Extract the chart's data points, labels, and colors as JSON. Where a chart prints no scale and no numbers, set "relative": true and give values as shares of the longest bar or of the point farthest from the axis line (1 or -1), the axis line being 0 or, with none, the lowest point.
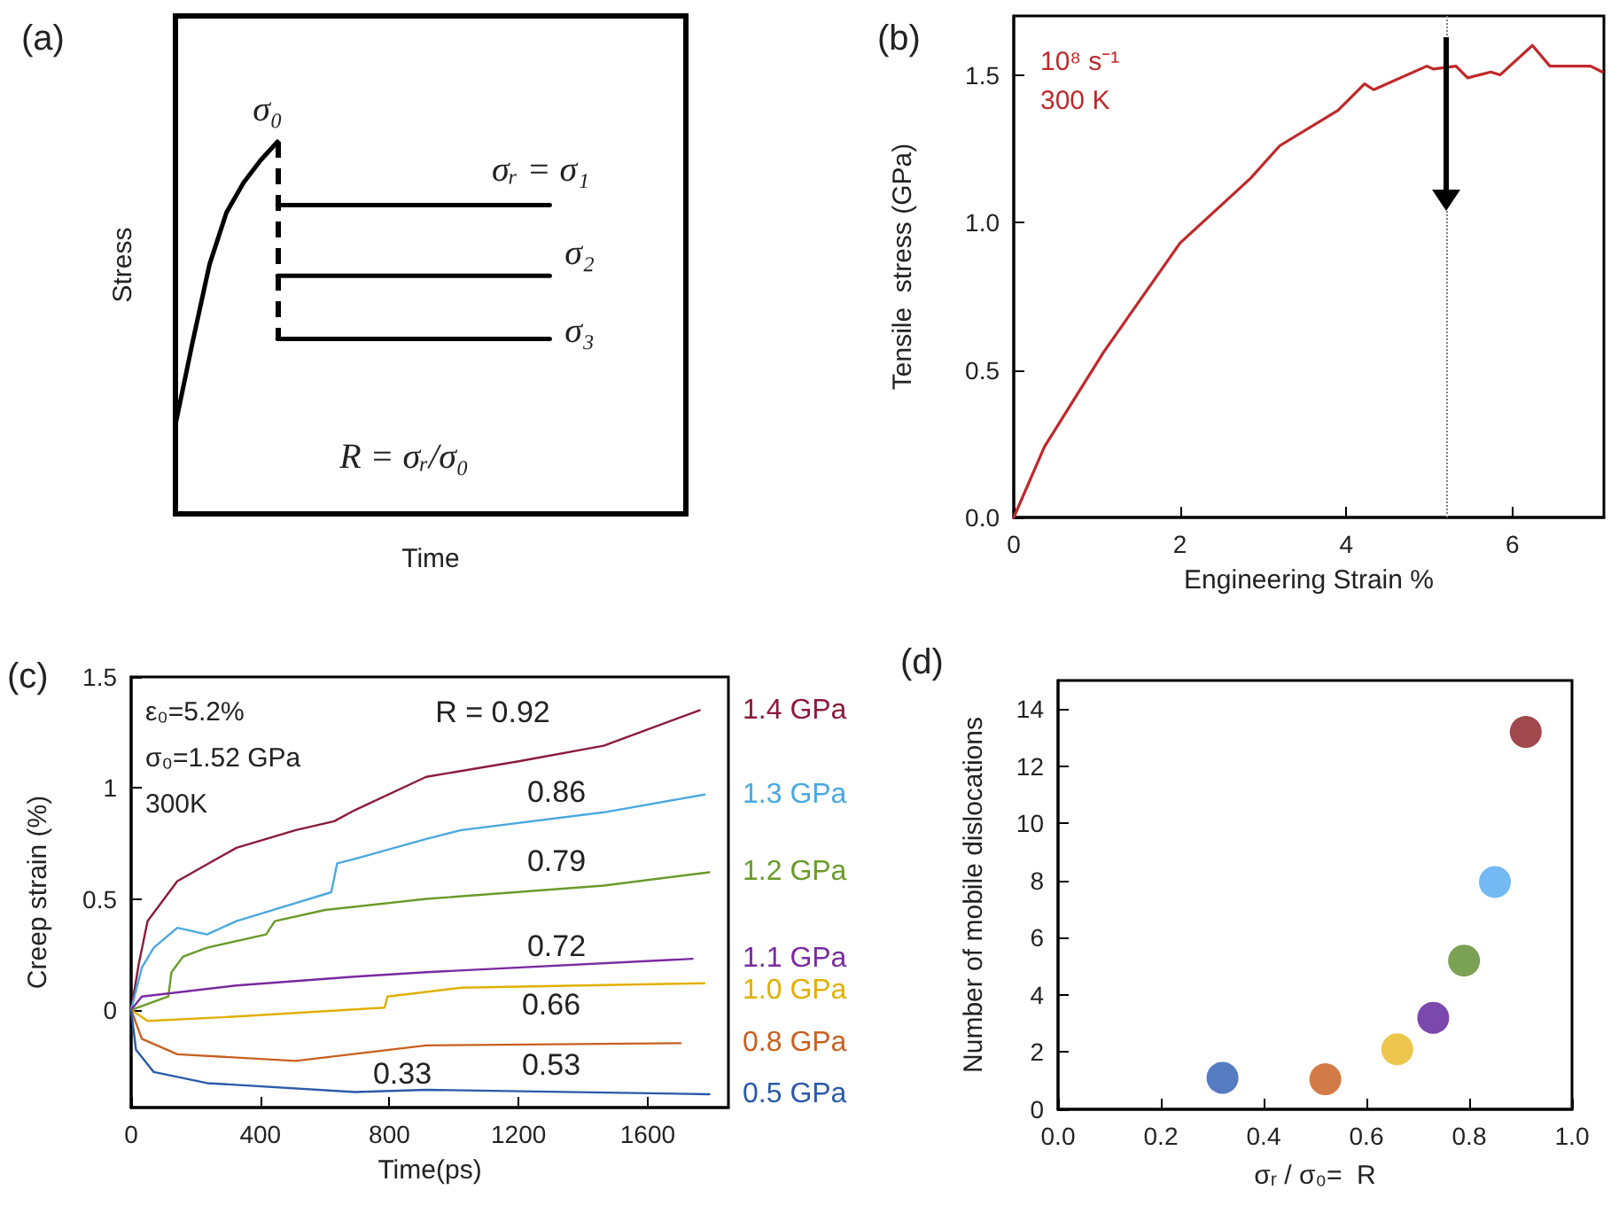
{
  "chart_data": [
    {
      "type": "line",
      "title": "(a)",
      "xlabel": "Time",
      "ylabel": "Stress",
      "relative": true,
      "marker": "none",
      "categories": [
        null,
        null,
        null,
        null,
        null,
        null,
        null,
        null,
        null,
        null,
        null,
        null,
        null,
        null,
        null,
        null,
        null,
        null,
        null,
        null,
        null,
        null,
        null,
        null,
        null,
        null,
        null,
        null,
        null,
        null,
        null
      ],
      "series": [
        {
          "color": "#000000",
          "values": [
            0.24,
            0.46,
            0.67,
            0.81,
            0.89,
            0.95,
            1,
            null,
            null,
            null,
            null,
            null,
            null,
            null,
            null,
            null,
            null,
            null,
            null,
            null,
            null,
            null,
            null,
            null,
            null,
            null,
            null,
            null,
            null,
            null,
            null
          ]
        },
        {
          "color": "#000000",
          "values": [
            null,
            null,
            null,
            null,
            null,
            null,
            0.83,
            0.83,
            0.83,
            0.83,
            0.83,
            0.83,
            0.83,
            0.83,
            0.83,
            0.83,
            0.83,
            0.83,
            0.83,
            0.83,
            0.83,
            0.83,
            0.83,
            null,
            null,
            null,
            null,
            null,
            null,
            null,
            null
          ]
        },
        {
          "color": "#000000",
          "values": [
            null,
            null,
            null,
            null,
            null,
            null,
            0.64,
            0.64,
            0.64,
            0.64,
            0.64,
            0.64,
            0.64,
            0.64,
            0.64,
            0.64,
            0.64,
            0.64,
            0.64,
            0.64,
            0.64,
            0.64,
            0.64,
            null,
            null,
            null,
            null,
            null,
            null,
            null,
            null
          ]
        },
        {
          "color": "#000000",
          "values": [
            null,
            null,
            null,
            null,
            null,
            null,
            0.47,
            0.47,
            0.47,
            0.47,
            0.47,
            0.47,
            0.47,
            0.47,
            0.47,
            0.47,
            0.47,
            0.47,
            0.47,
            0.47,
            0.47,
            0.47,
            0.47,
            null,
            null,
            null,
            null,
            null,
            null,
            null,
            null
          ]
        }
      ],
      "annotations": [
        "σ₀",
        "σᵣ = σ₁",
        "σ₂",
        "σ₃",
        "R = σᵣ/σ₀"
      ]
    },
    {
      "type": "line",
      "title": "(b)",
      "xlabel": "Engineering Strain %",
      "ylabel": "Tensile  stress (GPa)",
      "xlim": [
        0,
        7.1
      ],
      "xticks": [
        0,
        2,
        4,
        6
      ],
      "ylim": [
        0,
        1.7
      ],
      "yticks": [
        {
          "value": 0,
          "label": "0.0"
        },
        0.5,
        {
          "value": 1,
          "label": "1.0"
        },
        1.5
      ],
      "marker": "none",
      "series": [
        {
          "color": "#c0282a",
          "x": [
            0,
            0.37,
            1.08,
            2,
            2.85,
            3.2,
            3.9,
            4.22,
            4.33,
            4.97,
            5.05,
            5.32,
            5.46,
            5.74,
            5.85,
            6.24,
            6.45,
            6.73,
            6.94,
            7.08
          ],
          "values": [
            0,
            0.24,
            0.56,
            0.93,
            1.15,
            1.26,
            1.38,
            1.47,
            1.45,
            1.53,
            1.52,
            1.53,
            1.49,
            1.51,
            1.5,
            1.6,
            1.53,
            1.53,
            1.53,
            1.51
          ]
        }
      ],
      "ref_lines": [
        {
          "axis": "x",
          "value": 5.2,
          "color": "#808080",
          "line_style": "dotted"
        }
      ],
      "annotations": [
        "10⁸ s⁻¹",
        "300 K"
      ]
    },
    {
      "type": "line",
      "title": "(c)",
      "xlabel": "Time(ps)",
      "ylabel": "Creep strain (%)",
      "xlim": [
        0,
        1850
      ],
      "xticks": [
        0,
        400,
        800,
        1200,
        1600
      ],
      "ylim": [
        -0.44,
        1.5
      ],
      "yticks": [
        0,
        0.5,
        1,
        1.5
      ],
      "marker": "none",
      "series": [
        {
          "name": "1.4 GPa",
          "color": "#8b1a3a",
          "x": [
            0,
            24,
            51,
            143,
            326,
            510,
            629,
            693,
            914,
            1200,
            1464,
            1761
          ],
          "values": [
            0,
            0.21,
            0.4,
            0.58,
            0.73,
            0.81,
            0.85,
            0.9,
            1.05,
            1.12,
            1.19,
            1.35
          ]
        },
        {
          "name": "1.3 GPa",
          "color": "#4aa8e0",
          "x": [
            0,
            33,
            70,
            143,
            235,
            326,
            620,
            638,
            693,
            914,
            1023,
            1464,
            1776
          ],
          "values": [
            0,
            0.19,
            0.28,
            0.37,
            0.34,
            0.4,
            0.53,
            0.66,
            0.68,
            0.77,
            0.81,
            0.89,
            0.97
          ]
        },
        {
          "name": "1.2 GPa",
          "color": "#6a9a2a",
          "x": [
            0,
            115,
            125,
            161,
            235,
            418,
            445,
            601,
            914,
            1464,
            1791
          ],
          "values": [
            0,
            0.06,
            0.17,
            0.24,
            0.28,
            0.34,
            0.4,
            0.45,
            0.5,
            0.56,
            0.62
          ]
        },
        {
          "name": "1.1 GPa",
          "color": "#7a2aa0",
          "x": [
            0,
            33,
            326,
            693,
            914,
            1739
          ],
          "values": [
            0,
            0.06,
            0.11,
            0.15,
            0.17,
            0.23
          ]
        },
        {
          "name": "1.0 GPa",
          "color": "#e0b000",
          "x": [
            0,
            51,
            326,
            785,
            794,
            1023,
            1776
          ],
          "values": [
            0,
            -0.05,
            -0.03,
            0.01,
            0.06,
            0.1,
            0.12
          ]
        },
        {
          "name": "0.8 GPa",
          "color": "#c86020",
          "x": [
            0,
            33,
            143,
            510,
            914,
            1702
          ],
          "values": [
            0,
            -0.13,
            -0.2,
            -0.23,
            -0.16,
            -0.15
          ]
        },
        {
          "name": "0.5 GPa",
          "color": "#2a5aa8",
          "x": [
            0,
            15,
            70,
            235,
            693,
            914,
            1791
          ],
          "values": [
            0,
            -0.18,
            -0.28,
            -0.33,
            -0.37,
            -0.36,
            -0.38
          ]
        }
      ],
      "annotations": [
        "ε₀=5.2%",
        "σ₀=1.52 GPa",
        "300K",
        "R = 0.92",
        "0.86",
        "0.79",
        "0.72",
        "0.66",
        "0.53",
        "0.33"
      ]
    },
    {
      "type": "scatter",
      "title": "(d)",
      "xlabel": "σᵣ / σ₀=  R",
      "ylabel": "Number of mobile dislocations",
      "xlim": [
        0,
        1
      ],
      "xticks": [
        {
          "value": 0,
          "label": "0.0"
        },
        0.2,
        0.4,
        0.6,
        0.8,
        {
          "value": 1,
          "label": "1.0"
        }
      ],
      "ylim": [
        0,
        15
      ],
      "yticks": [
        0,
        2,
        4,
        6,
        8,
        10,
        12,
        14
      ],
      "marker": "circle",
      "x": [
        0.32,
        0.52,
        0.66,
        0.73,
        0.79,
        0.85,
        0.91
      ],
      "values": [
        1.1,
        1.05,
        2.1,
        3.2,
        5.2,
        7.95,
        13.2
      ],
      "colors": [
        "#2a5ab0",
        "#c85a18",
        "#e8b820",
        "#5a1a9a",
        "#5a8a2a",
        "#50a8f0",
        "#8a1a20"
      ]
    }
  ]
}
